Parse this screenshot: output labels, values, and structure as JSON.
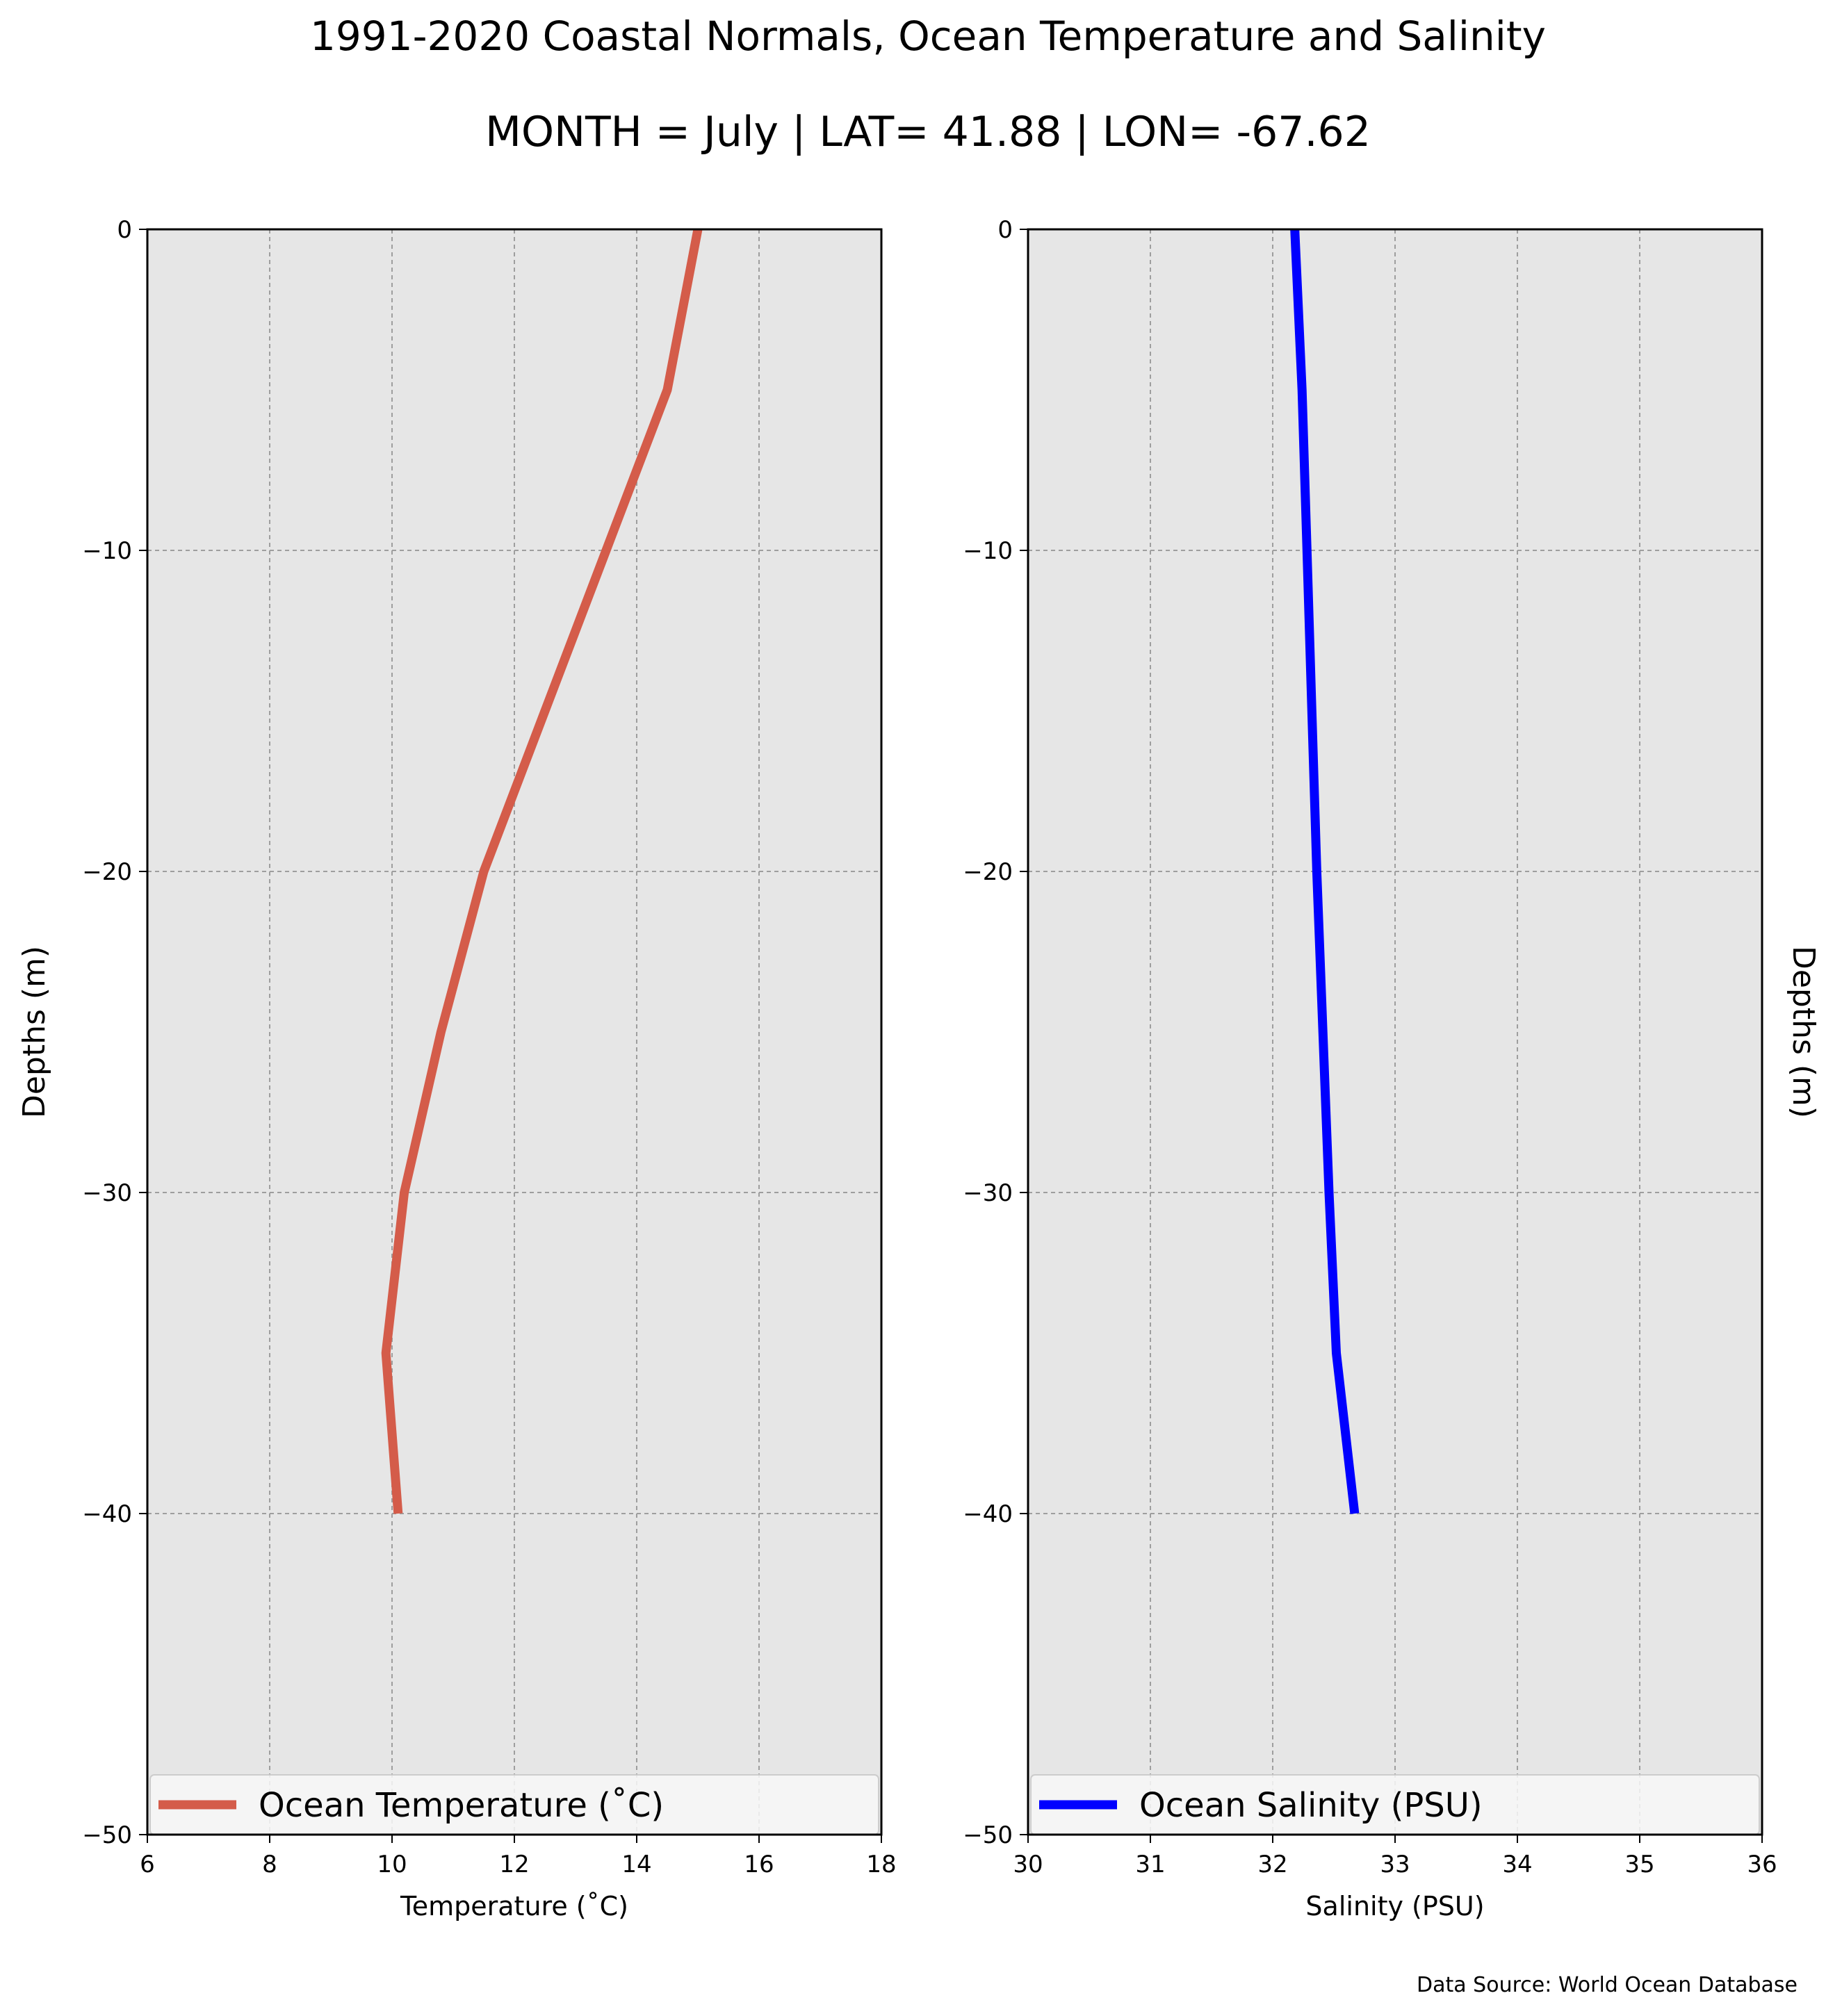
{
  "header": {
    "title": "1991-2020 Coastal Normals, Ocean Temperature and Salinity",
    "subtitle": "MONTH = July | LAT= 41.88 | LON= -67.62"
  },
  "footer": {
    "source": "Data Source: World Ocean Database"
  },
  "colors": {
    "plot_background": "#e6e6e6",
    "grid": "#9e9e9e",
    "temperature_line": "#d45c4a",
    "salinity_line": "#0000ff",
    "legend_background": "#f7f7f7"
  },
  "chart_data": [
    {
      "type": "line",
      "xlabel": "Temperature ($^\\circ$C)",
      "xlabel_display": "Temperature (˚C)",
      "ylabel": "Depths (m)",
      "xlim": [
        6,
        18
      ],
      "ylim": [
        -50,
        0
      ],
      "xticks": [
        "6",
        "8",
        "10",
        "12",
        "14",
        "16",
        "18"
      ],
      "yticks": [
        "0",
        "−10",
        "−20",
        "−30",
        "−40",
        "−50"
      ],
      "grid": true,
      "legend_position": "lower center",
      "series": [
        {
          "name": "Ocean Temperature (˚C)",
          "color": "#d45c4a",
          "depth": [
            0,
            -5,
            -10,
            -15,
            -20,
            -25,
            -30,
            -35,
            -40
          ],
          "values": [
            15.0,
            14.5,
            13.5,
            12.5,
            11.5,
            10.8,
            10.2,
            9.9,
            10.1
          ]
        }
      ]
    },
    {
      "type": "line",
      "xlabel": "Salinity (PSU)",
      "xlabel_display": "Salinity (PSU)",
      "ylabel": "Depths (m)",
      "xlim": [
        30,
        36
      ],
      "ylim": [
        -50,
        0
      ],
      "xticks": [
        "30",
        "31",
        "32",
        "33",
        "34",
        "35",
        "36"
      ],
      "yticks": [
        "0",
        "−10",
        "−20",
        "−30",
        "−40",
        "−50"
      ],
      "grid": true,
      "legend_position": "lower center",
      "series": [
        {
          "name": "Ocean Salinity (PSU)",
          "color": "#0000ff",
          "depth": [
            0,
            -5,
            -10,
            -15,
            -20,
            -25,
            -30,
            -35,
            -40
          ],
          "values": [
            32.18,
            32.24,
            32.28,
            32.32,
            32.36,
            32.41,
            32.46,
            32.52,
            32.67
          ]
        }
      ]
    }
  ]
}
